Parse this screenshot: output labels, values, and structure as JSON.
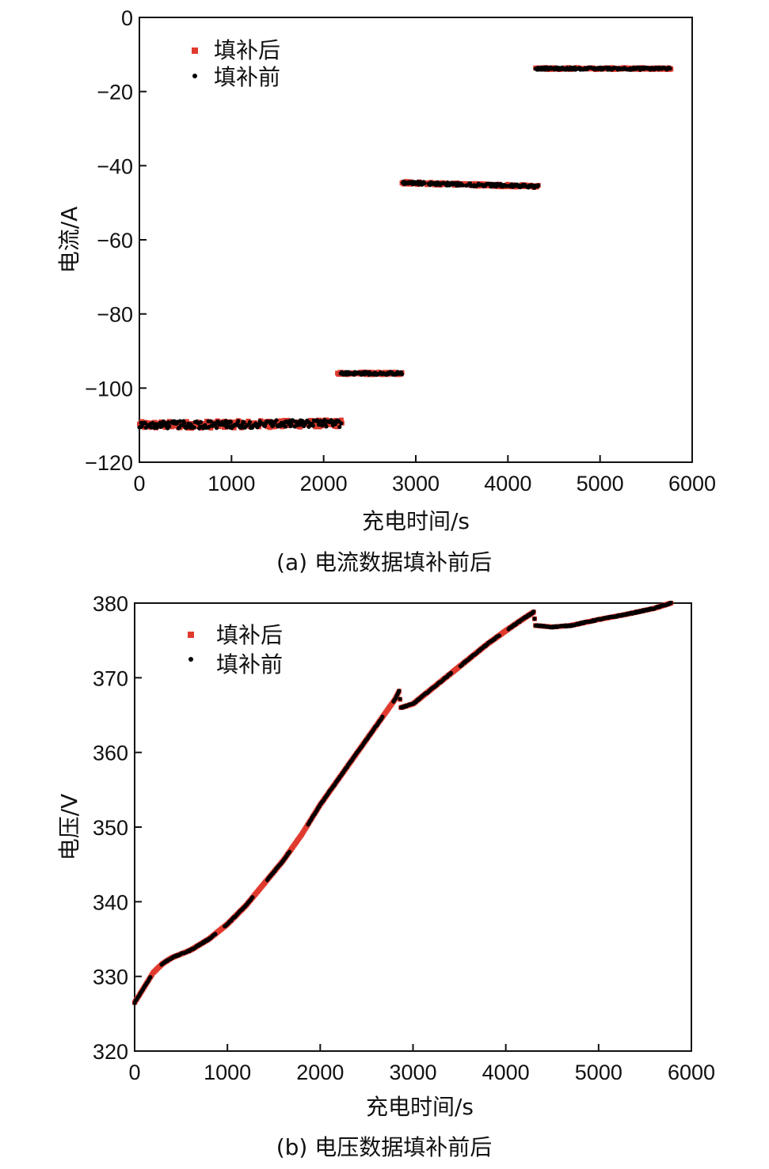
{
  "chart_data": [
    {
      "type": "scatter",
      "caption": "(a) 电流数据填补前后",
      "xlabel": "充电时间/s",
      "ylabel": "电流/A",
      "xlim": [
        0,
        6000
      ],
      "ylim": [
        -120,
        0
      ],
      "xticks": [
        "0",
        "1000",
        "2000",
        "3000",
        "4000",
        "5000",
        "6000"
      ],
      "yticks": [
        "0",
        "−20",
        "−40",
        "−60",
        "−80",
        "−100",
        "−120"
      ],
      "legend": {
        "position": "top-left",
        "entries": [
          "填补后",
          "填补前"
        ]
      },
      "grid": false,
      "segments": [
        {
          "x_start": 0,
          "x_end": 2200,
          "y_start": -110,
          "y_end": -109.5,
          "noise": 1.0
        },
        {
          "x_start": 2150,
          "x_end": 2850,
          "y_start": -96,
          "y_end": -96,
          "noise": 0.4
        },
        {
          "x_start": 2850,
          "x_end": 4330,
          "y_start": -44.6,
          "y_end": -45.6,
          "noise": 0.4
        },
        {
          "x_start": 4300,
          "x_end": 5770,
          "y_start": -13.8,
          "y_end": -13.8,
          "noise": 0.3
        }
      ],
      "series": [
        {
          "name": "填补后",
          "marker": "square",
          "color": "#e03a2f"
        },
        {
          "name": "填补前",
          "marker": "circle",
          "color": "#000000"
        }
      ]
    },
    {
      "type": "scatter",
      "caption": "(b) 电压数据填补前后",
      "xlabel": "充电时间/s",
      "ylabel": "电压/V",
      "xlim": [
        0,
        6000
      ],
      "ylim": [
        320,
        380
      ],
      "xticks": [
        "0",
        "1000",
        "2000",
        "3000",
        "4000",
        "5000",
        "6000"
      ],
      "yticks": [
        "380",
        "370",
        "360",
        "350",
        "340",
        "330",
        "320"
      ],
      "legend": {
        "position": "top-left",
        "entries": [
          "填补后",
          "填补前"
        ]
      },
      "grid": false,
      "curve": [
        [
          0,
          326.5
        ],
        [
          100,
          328.5
        ],
        [
          200,
          330.5
        ],
        [
          300,
          331.7
        ],
        [
          400,
          332.5
        ],
        [
          600,
          333.5
        ],
        [
          800,
          335.0
        ],
        [
          1000,
          337.0
        ],
        [
          1200,
          339.5
        ],
        [
          1400,
          342.5
        ],
        [
          1600,
          345.5
        ],
        [
          1800,
          349.0
        ],
        [
          2000,
          353.0
        ],
        [
          2200,
          356.5
        ],
        [
          2400,
          360.0
        ],
        [
          2600,
          363.5
        ],
        [
          2800,
          367.0
        ],
        [
          2850,
          368.2
        ],
        [
          2870,
          366.0
        ],
        [
          3000,
          366.5
        ],
        [
          3200,
          368.5
        ],
        [
          3400,
          370.5
        ],
        [
          3600,
          372.5
        ],
        [
          3800,
          374.5
        ],
        [
          4000,
          376.3
        ],
        [
          4200,
          378.0
        ],
        [
          4300,
          378.8
        ],
        [
          4320,
          377.0
        ],
        [
          4500,
          376.8
        ],
        [
          4700,
          377.0
        ],
        [
          5000,
          377.8
        ],
        [
          5300,
          378.5
        ],
        [
          5600,
          379.3
        ],
        [
          5780,
          380.0
        ]
      ],
      "series": [
        {
          "name": "填补后",
          "marker": "square",
          "color": "#e03a2f"
        },
        {
          "name": "填补前",
          "marker": "circle",
          "color": "#000000"
        }
      ]
    }
  ]
}
